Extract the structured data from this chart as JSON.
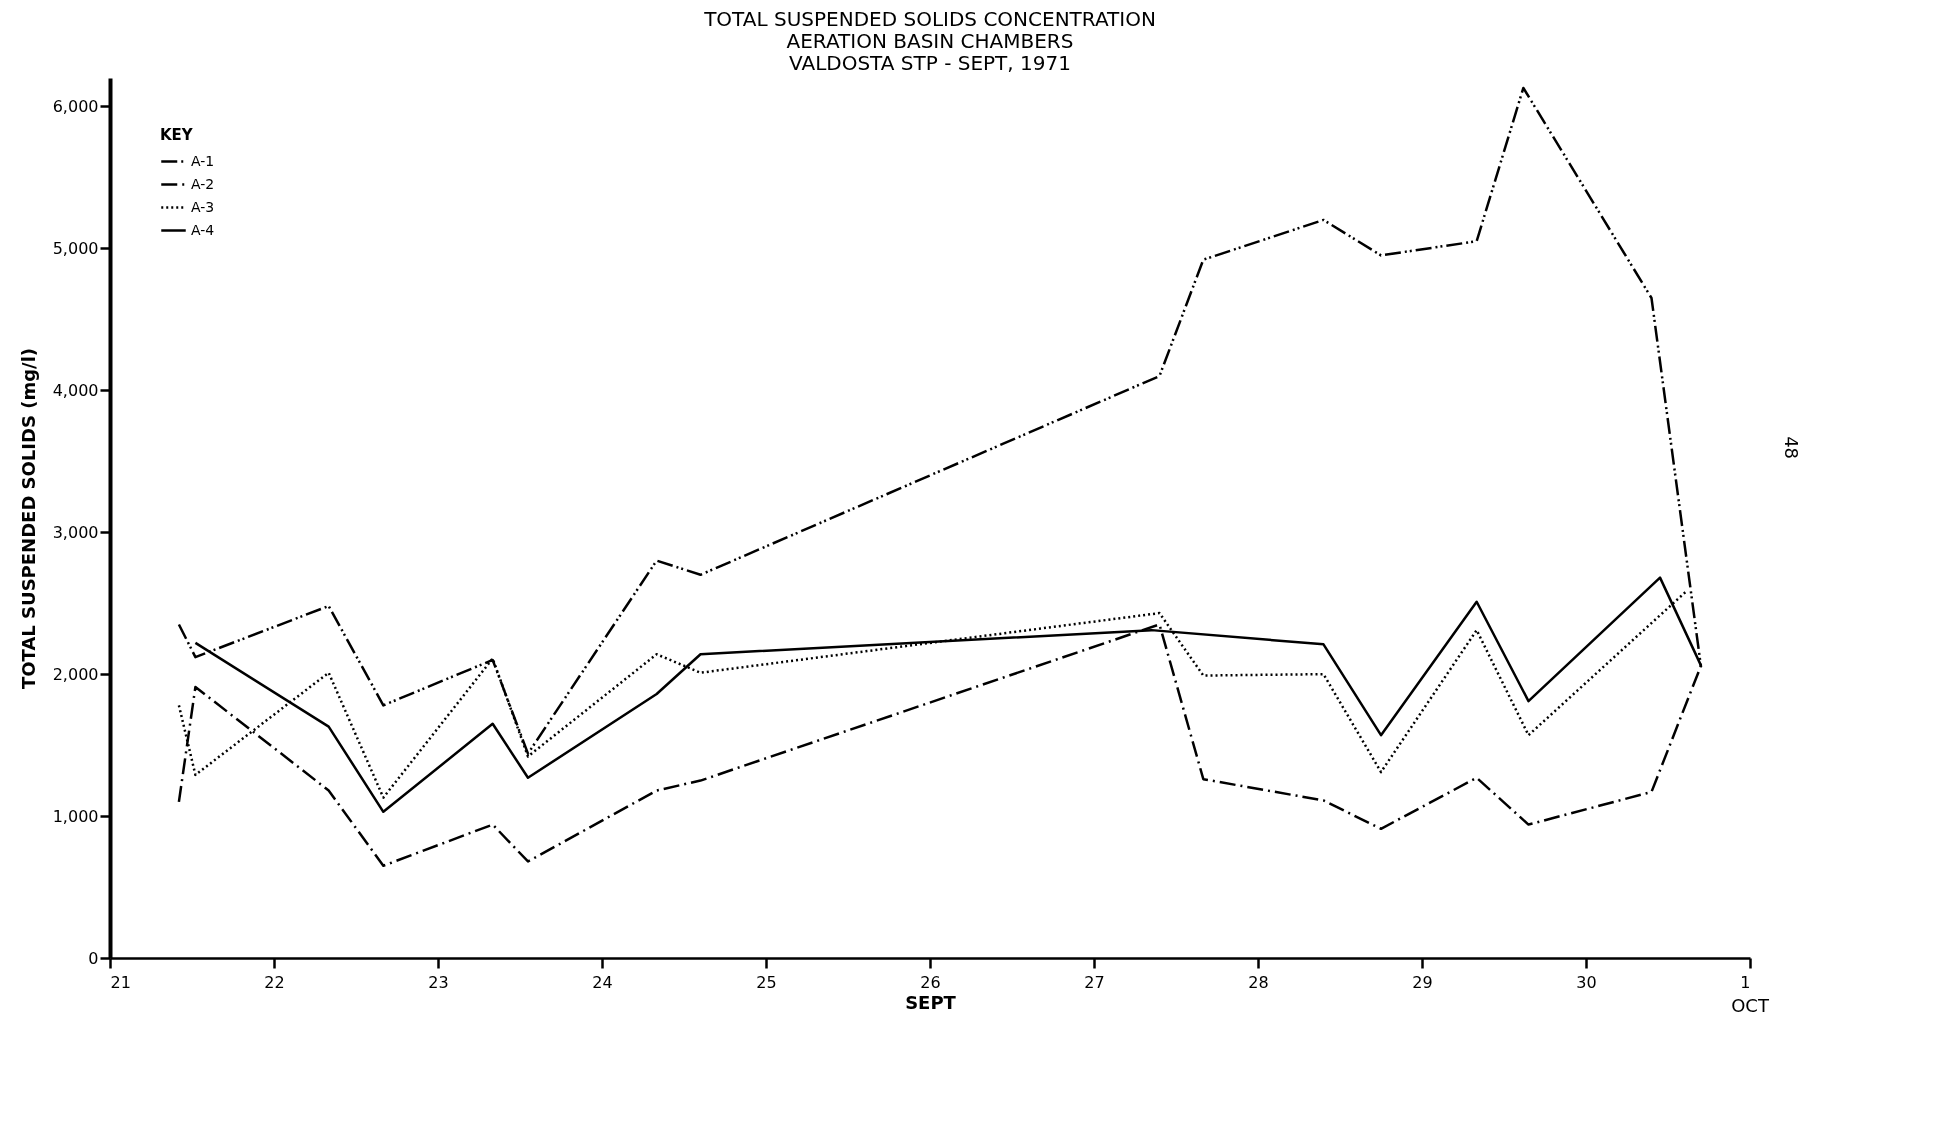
{
  "chart_data": {
    "type": "line",
    "title": [
      "TOTAL SUSPENDED SOLIDS CONCENTRATION",
      "AERATION BASIN CHAMBERS",
      "VALDOSTA STP - SEPT, 1971"
    ],
    "xlabel": "SEPT",
    "ylabel": "TOTAL SUSPENDED SOLIDS (mg/l)",
    "legend_title": "KEY",
    "legend": "left",
    "grid": false,
    "marker": "none",
    "xlim": [
      "1971-09-21",
      "1971-10-01"
    ],
    "ylim": [
      0,
      6200
    ],
    "xticks": [
      {
        "value": "1971-09-21",
        "label": "21"
      },
      {
        "value": "1971-09-22",
        "label": "22"
      },
      {
        "value": "1971-09-23",
        "label": "23"
      },
      {
        "value": "1971-09-24",
        "label": "24"
      },
      {
        "value": "1971-09-25",
        "label": "25"
      },
      {
        "value": "1971-09-26",
        "label": "26"
      },
      {
        "value": "1971-09-27",
        "label": "27"
      },
      {
        "value": "1971-09-28",
        "label": "28"
      },
      {
        "value": "1971-09-29",
        "label": "29"
      },
      {
        "value": "1971-09-30",
        "label": "30"
      },
      {
        "value": "1971-10-01",
        "label": "1"
      }
    ],
    "yticks": [
      0,
      {
        "value": 1000,
        "label": "1,000"
      },
      {
        "value": 2000,
        "label": "2,000"
      },
      {
        "value": 3000,
        "label": "3,000"
      },
      {
        "value": 4000,
        "label": "4,000"
      },
      {
        "value": 5000,
        "label": "5,000"
      },
      {
        "value": 6000,
        "label": "6,000"
      }
    ],
    "series": [
      {
        "name": "A-1",
        "color": "#000000",
        "line_style": "dashdotdot",
        "x": [
          "1971-09-21T10:05",
          "1971-09-21T12:30",
          "1971-09-22T08:00",
          "1971-09-22T16:00",
          "1971-09-23T08:00",
          "1971-09-23T13:10",
          "1971-09-24T08:00",
          "1971-09-24T14:25",
          "1971-09-27T09:35",
          "1971-09-27T16:00",
          "1971-09-28T09:35",
          "1971-09-28T18:00",
          "1971-09-29T08:00",
          "1971-09-29T14:50",
          "1971-09-30T09:35",
          "1971-09-30T16:50"
        ],
        "values": [
          2350,
          2120,
          2480,
          1780,
          2100,
          1440,
          2800,
          2700,
          4100,
          4920,
          5200,
          4950,
          5050,
          6130,
          4650,
          2050
        ]
      },
      {
        "name": "A-2",
        "color": "#000000",
        "line_style": "dashdot",
        "x": [
          "1971-09-21T10:05",
          "1971-09-21T12:30",
          "1971-09-22T08:00",
          "1971-09-22T16:00",
          "1971-09-23T08:00",
          "1971-09-23T13:10",
          "1971-09-24T08:00",
          "1971-09-24T14:25",
          "1971-09-27T09:35",
          "1971-09-27T16:00",
          "1971-09-28T09:35",
          "1971-09-28T18:00",
          "1971-09-29T08:00",
          "1971-09-29T15:35",
          "1971-09-30T09:35",
          "1971-09-30T16:50"
        ],
        "values": [
          1100,
          1910,
          1180,
          650,
          940,
          680,
          1180,
          1250,
          2350,
          1260,
          1110,
          910,
          1270,
          940,
          1170,
          2060
        ]
      },
      {
        "name": "A-3",
        "color": "#000000",
        "line_style": "dotted",
        "x": [
          "1971-09-21T10:05",
          "1971-09-21T12:30",
          "1971-09-22T08:00",
          "1971-09-22T16:00",
          "1971-09-23T08:00",
          "1971-09-23T13:10",
          "1971-09-24T08:00",
          "1971-09-24T14:25",
          "1971-09-27T09:35",
          "1971-09-27T16:00",
          "1971-09-28T09:35",
          "1971-09-28T18:00",
          "1971-09-29T08:00",
          "1971-09-29T15:35",
          "1971-09-30T14:50"
        ],
        "values": [
          1780,
          1290,
          2010,
          1130,
          2110,
          1420,
          2140,
          2010,
          2430,
          1990,
          2000,
          1310,
          2310,
          1570,
          2590
        ]
      },
      {
        "name": "A-4",
        "color": "#000000",
        "line_style": "solid",
        "x": [
          "1971-09-21T12:30",
          "1971-09-22T08:00",
          "1971-09-22T16:00",
          "1971-09-23T08:00",
          "1971-09-23T13:10",
          "1971-09-24T08:00",
          "1971-09-24T14:25",
          "1971-09-27T08:25",
          "1971-09-28T09:35",
          "1971-09-28T18:00",
          "1971-09-29T08:00",
          "1971-09-29T15:35",
          "1971-09-30T10:50",
          "1971-09-30T16:50"
        ],
        "values": [
          2220,
          1630,
          1030,
          1650,
          1270,
          1860,
          2140,
          2310,
          2210,
          1570,
          2510,
          1810,
          2680,
          2060
        ]
      }
    ],
    "annotations": [
      "OCT",
      "48"
    ]
  }
}
